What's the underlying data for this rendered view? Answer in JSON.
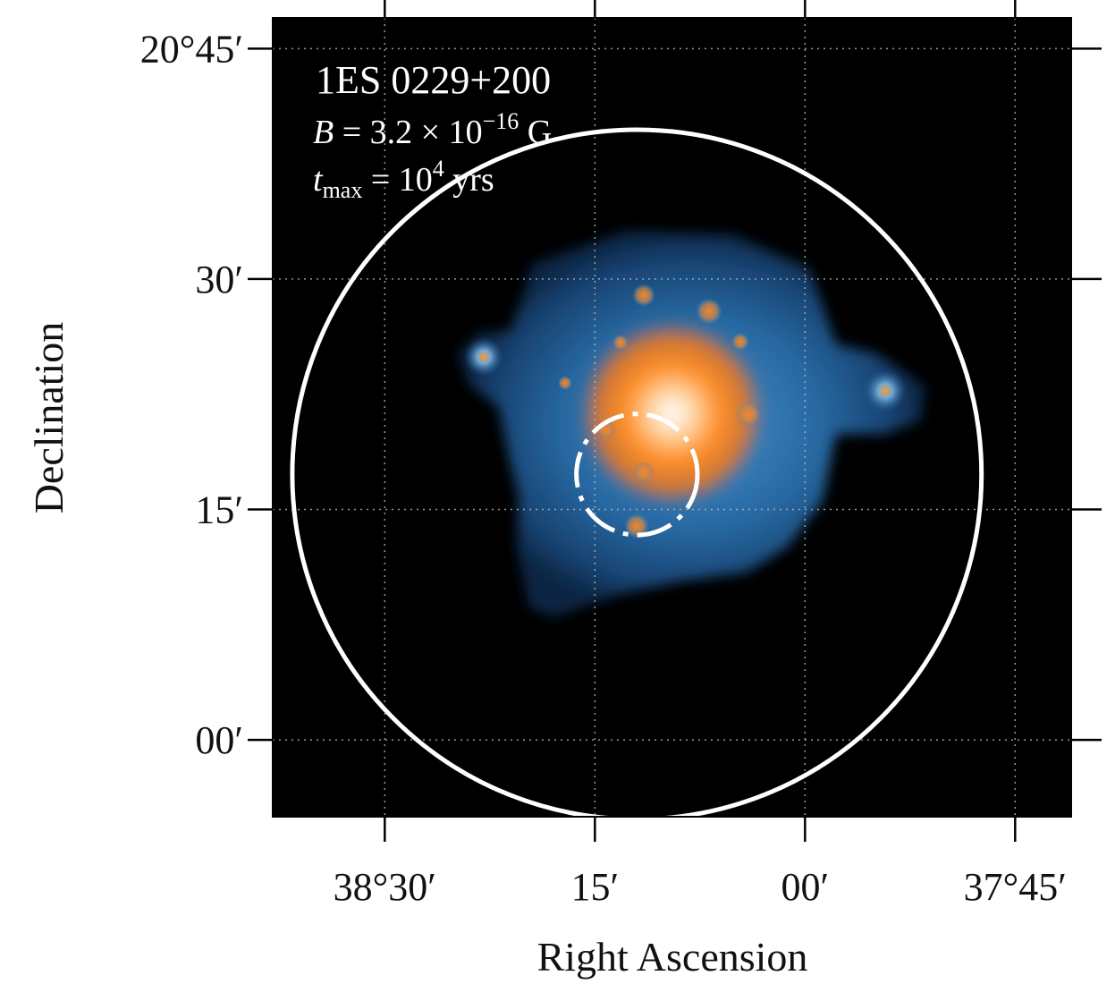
{
  "chart_data": {
    "type": "sky-map",
    "xlabel": "Right Ascension",
    "ylabel": "Declination",
    "xlim_deg": [
      38.6333,
      37.6833
    ],
    "ylim_deg": [
      20.7833,
      19.9167
    ],
    "grid": true,
    "x_ticks": [
      {
        "deg": 38.5,
        "label": "38°30′"
      },
      {
        "deg": 38.25,
        "label": "15′"
      },
      {
        "deg": 38.0,
        "label": "00′"
      },
      {
        "deg": 37.75,
        "label": "37°45′"
      }
    ],
    "y_ticks": [
      {
        "deg": 20.75,
        "label": "20°45′"
      },
      {
        "deg": 20.5,
        "label": "30′"
      },
      {
        "deg": 20.25,
        "label": "15′"
      },
      {
        "deg": 20.0,
        "label": "00′"
      }
    ],
    "annotation": {
      "source": "1ES 0229+200",
      "field_prefix": "B",
      "field_equals": " = 3.2 × 10",
      "field_exp": "−16",
      "field_unit": " G",
      "tmax_prefix": "t",
      "tmax_sub": "max",
      "tmax_equals": " = 10",
      "tmax_exp": "4",
      "tmax_unit": " yrs"
    },
    "source_position_deg": {
      "ra": 38.2,
      "dec": 20.288
    },
    "outer_circle": {
      "center_ra": 38.2,
      "center_dec": 20.288,
      "radius_deg": 0.41,
      "style": "solid",
      "color": "#ffffff"
    },
    "inner_circle": {
      "center_ra": 38.2,
      "center_dec": 20.288,
      "radius_deg": 0.072,
      "style": "dash-dot",
      "color": "#ffffff"
    },
    "colormap": {
      "low": "#0a2a4a",
      "mid": "#2f7fc1",
      "high": "#ff8a1e",
      "peak": "#ffffff"
    }
  }
}
